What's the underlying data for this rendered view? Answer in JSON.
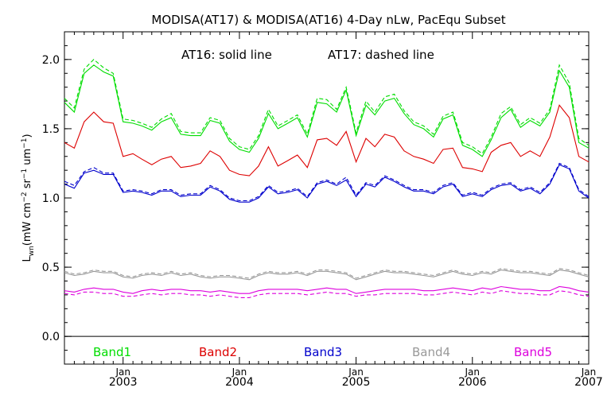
{
  "chart_data": {
    "type": "line",
    "title": "MODISA(AT17) & MODISA(AT16) 4-Day nLw, PacEqu Subset",
    "ylabel": "L_wn (mW cm^-2 sr^-1 um^-1)",
    "ylabel_parts": {
      "main": "L",
      "sub": "wn",
      "units_a": "(mW cm",
      "exp_a": "−2",
      "units_b": " sr",
      "exp_b": "−1",
      "units_c": " um",
      "exp_c": "−1",
      "units_d": ")"
    },
    "annotation_solid": "AT16: solid line",
    "annotation_dashed": "AT17: dashed line",
    "xlim": [
      "2002-07-01",
      "2007-01-01"
    ],
    "ylim": [
      -0.2,
      2.2
    ],
    "yticks": [
      0.0,
      0.5,
      1.0,
      1.5,
      2.0
    ],
    "ytick_labels": [
      "0.0",
      "0.5",
      "1.0",
      "1.5",
      "2.0"
    ],
    "xticks": [
      {
        "date": "2003-01-01",
        "month": "Jan",
        "year": "2003"
      },
      {
        "date": "2004-01-01",
        "month": "Jan",
        "year": "2004"
      },
      {
        "date": "2005-01-01",
        "month": "Jan",
        "year": "2005"
      },
      {
        "date": "2006-01-01",
        "month": "Jan",
        "year": "2006"
      },
      {
        "date": "2007-01-01",
        "month": "Jan",
        "year": "2007"
      }
    ],
    "zero_line": 0.0,
    "x": [
      "2002-07-01",
      "2002-08-01",
      "2002-09-01",
      "2002-10-01",
      "2002-11-01",
      "2002-12-01",
      "2003-01-01",
      "2003-02-01",
      "2003-03-01",
      "2003-04-01",
      "2003-05-01",
      "2003-06-01",
      "2003-07-01",
      "2003-08-01",
      "2003-09-01",
      "2003-10-01",
      "2003-11-01",
      "2003-12-01",
      "2004-01-01",
      "2004-02-01",
      "2004-03-01",
      "2004-04-01",
      "2004-05-01",
      "2004-06-01",
      "2004-07-01",
      "2004-08-01",
      "2004-09-01",
      "2004-10-01",
      "2004-11-01",
      "2004-12-01",
      "2005-01-01",
      "2005-02-01",
      "2005-03-01",
      "2005-04-01",
      "2005-05-01",
      "2005-06-01",
      "2005-07-01",
      "2005-08-01",
      "2005-09-01",
      "2005-10-01",
      "2005-11-01",
      "2005-12-01",
      "2006-01-01",
      "2006-02-01",
      "2006-03-01",
      "2006-04-01",
      "2006-05-01",
      "2006-06-01",
      "2006-07-01",
      "2006-08-01",
      "2006-09-01",
      "2006-10-01",
      "2006-11-01",
      "2006-12-01",
      "2007-01-01"
    ],
    "series": [
      {
        "name": "Band1",
        "color": "#00dd00",
        "line": "solid",
        "values": [
          1.69,
          1.62,
          1.9,
          1.96,
          1.91,
          1.88,
          1.55,
          1.54,
          1.52,
          1.49,
          1.55,
          1.58,
          1.46,
          1.45,
          1.45,
          1.56,
          1.54,
          1.41,
          1.35,
          1.33,
          1.43,
          1.61,
          1.5,
          1.54,
          1.58,
          1.44,
          1.69,
          1.68,
          1.62,
          1.78,
          1.45,
          1.67,
          1.6,
          1.7,
          1.72,
          1.61,
          1.53,
          1.5,
          1.44,
          1.57,
          1.6,
          1.38,
          1.35,
          1.3,
          1.42,
          1.58,
          1.64,
          1.51,
          1.56,
          1.52,
          1.62,
          1.92,
          1.8,
          1.4,
          1.36
        ]
      },
      {
        "name": "Band1",
        "color": "#00dd00",
        "line": "dashed",
        "values": [
          1.72,
          1.65,
          1.93,
          2.0,
          1.94,
          1.9,
          1.57,
          1.56,
          1.54,
          1.51,
          1.57,
          1.61,
          1.48,
          1.47,
          1.47,
          1.58,
          1.56,
          1.43,
          1.37,
          1.35,
          1.45,
          1.64,
          1.52,
          1.56,
          1.6,
          1.46,
          1.72,
          1.71,
          1.64,
          1.8,
          1.47,
          1.7,
          1.62,
          1.73,
          1.75,
          1.63,
          1.55,
          1.52,
          1.46,
          1.59,
          1.62,
          1.4,
          1.37,
          1.32,
          1.44,
          1.61,
          1.66,
          1.53,
          1.58,
          1.54,
          1.64,
          1.96,
          1.83,
          1.43,
          1.38
        ]
      },
      {
        "name": "Band2",
        "color": "#dd0000",
        "line": "solid",
        "values": [
          1.4,
          1.36,
          1.55,
          1.62,
          1.55,
          1.54,
          1.3,
          1.32,
          1.28,
          1.24,
          1.28,
          1.3,
          1.22,
          1.23,
          1.25,
          1.34,
          1.3,
          1.2,
          1.17,
          1.16,
          1.23,
          1.37,
          1.23,
          1.27,
          1.31,
          1.22,
          1.42,
          1.43,
          1.38,
          1.48,
          1.26,
          1.43,
          1.37,
          1.46,
          1.44,
          1.34,
          1.3,
          1.28,
          1.25,
          1.35,
          1.36,
          1.22,
          1.21,
          1.19,
          1.33,
          1.38,
          1.4,
          1.3,
          1.34,
          1.3,
          1.44,
          1.67,
          1.58,
          1.3,
          1.26
        ]
      },
      {
        "name": "Band3",
        "color": "#0000cc",
        "line": "solid",
        "values": [
          1.1,
          1.07,
          1.18,
          1.2,
          1.17,
          1.17,
          1.04,
          1.05,
          1.04,
          1.02,
          1.05,
          1.05,
          1.01,
          1.02,
          1.02,
          1.08,
          1.05,
          0.99,
          0.97,
          0.97,
          1.0,
          1.08,
          1.03,
          1.04,
          1.06,
          1.0,
          1.1,
          1.12,
          1.09,
          1.13,
          1.01,
          1.1,
          1.08,
          1.15,
          1.12,
          1.08,
          1.05,
          1.05,
          1.03,
          1.08,
          1.1,
          1.01,
          1.03,
          1.01,
          1.06,
          1.09,
          1.1,
          1.05,
          1.07,
          1.03,
          1.1,
          1.24,
          1.21,
          1.05,
          1.0
        ]
      },
      {
        "name": "Band3",
        "color": "#0000cc",
        "line": "dashed",
        "values": [
          1.12,
          1.09,
          1.19,
          1.22,
          1.18,
          1.18,
          1.05,
          1.06,
          1.05,
          1.03,
          1.06,
          1.06,
          1.02,
          1.03,
          1.03,
          1.09,
          1.06,
          1.0,
          0.98,
          0.98,
          1.01,
          1.09,
          1.04,
          1.05,
          1.07,
          1.01,
          1.11,
          1.13,
          1.1,
          1.15,
          1.02,
          1.11,
          1.09,
          1.16,
          1.13,
          1.09,
          1.06,
          1.06,
          1.04,
          1.09,
          1.11,
          1.02,
          1.04,
          1.02,
          1.07,
          1.1,
          1.11,
          1.06,
          1.08,
          1.04,
          1.11,
          1.25,
          1.22,
          1.06,
          1.01
        ]
      },
      {
        "name": "Band4",
        "color": "#999999",
        "line": "solid",
        "values": [
          0.46,
          0.44,
          0.45,
          0.47,
          0.46,
          0.46,
          0.43,
          0.42,
          0.44,
          0.45,
          0.44,
          0.46,
          0.44,
          0.45,
          0.43,
          0.42,
          0.43,
          0.43,
          0.42,
          0.41,
          0.44,
          0.46,
          0.45,
          0.45,
          0.46,
          0.44,
          0.47,
          0.47,
          0.46,
          0.45,
          0.41,
          0.43,
          0.45,
          0.47,
          0.46,
          0.46,
          0.45,
          0.44,
          0.43,
          0.45,
          0.47,
          0.45,
          0.44,
          0.46,
          0.45,
          0.48,
          0.47,
          0.46,
          0.46,
          0.45,
          0.44,
          0.48,
          0.47,
          0.45,
          0.43
        ]
      },
      {
        "name": "Band4",
        "color": "#999999",
        "line": "dashed",
        "values": [
          0.47,
          0.45,
          0.46,
          0.48,
          0.47,
          0.47,
          0.44,
          0.43,
          0.45,
          0.46,
          0.45,
          0.47,
          0.45,
          0.46,
          0.44,
          0.43,
          0.44,
          0.44,
          0.43,
          0.42,
          0.45,
          0.47,
          0.46,
          0.46,
          0.47,
          0.45,
          0.48,
          0.48,
          0.47,
          0.46,
          0.42,
          0.44,
          0.46,
          0.48,
          0.47,
          0.47,
          0.46,
          0.45,
          0.44,
          0.46,
          0.48,
          0.46,
          0.45,
          0.47,
          0.46,
          0.49,
          0.48,
          0.47,
          0.47,
          0.46,
          0.45,
          0.49,
          0.48,
          0.46,
          0.44
        ]
      },
      {
        "name": "Band5",
        "color": "#dd00dd",
        "line": "solid",
        "values": [
          0.33,
          0.32,
          0.34,
          0.35,
          0.34,
          0.34,
          0.32,
          0.31,
          0.33,
          0.34,
          0.33,
          0.34,
          0.34,
          0.33,
          0.33,
          0.32,
          0.33,
          0.32,
          0.31,
          0.31,
          0.33,
          0.34,
          0.34,
          0.34,
          0.34,
          0.33,
          0.34,
          0.35,
          0.34,
          0.34,
          0.31,
          0.32,
          0.33,
          0.34,
          0.34,
          0.34,
          0.34,
          0.33,
          0.33,
          0.34,
          0.35,
          0.34,
          0.33,
          0.35,
          0.34,
          0.36,
          0.35,
          0.34,
          0.34,
          0.33,
          0.33,
          0.36,
          0.35,
          0.33,
          0.32
        ]
      },
      {
        "name": "Band5",
        "color": "#dd00dd",
        "line": "dashed",
        "values": [
          0.31,
          0.3,
          0.32,
          0.32,
          0.31,
          0.31,
          0.29,
          0.29,
          0.3,
          0.31,
          0.3,
          0.31,
          0.31,
          0.3,
          0.3,
          0.29,
          0.3,
          0.29,
          0.28,
          0.28,
          0.3,
          0.31,
          0.31,
          0.31,
          0.31,
          0.3,
          0.31,
          0.32,
          0.31,
          0.31,
          0.29,
          0.3,
          0.3,
          0.31,
          0.31,
          0.31,
          0.31,
          0.3,
          0.3,
          0.31,
          0.32,
          0.31,
          0.3,
          0.32,
          0.31,
          0.33,
          0.32,
          0.31,
          0.31,
          0.3,
          0.3,
          0.33,
          0.32,
          0.3,
          0.29
        ]
      }
    ],
    "legend": [
      {
        "label": "Band1",
        "color": "#00dd00"
      },
      {
        "label": "Band2",
        "color": "#dd0000"
      },
      {
        "label": "Band3",
        "color": "#0000cc"
      },
      {
        "label": "Band4",
        "color": "#999999"
      },
      {
        "label": "Band5",
        "color": "#dd00dd"
      }
    ],
    "legend_placement": "bottom",
    "grid": false
  }
}
